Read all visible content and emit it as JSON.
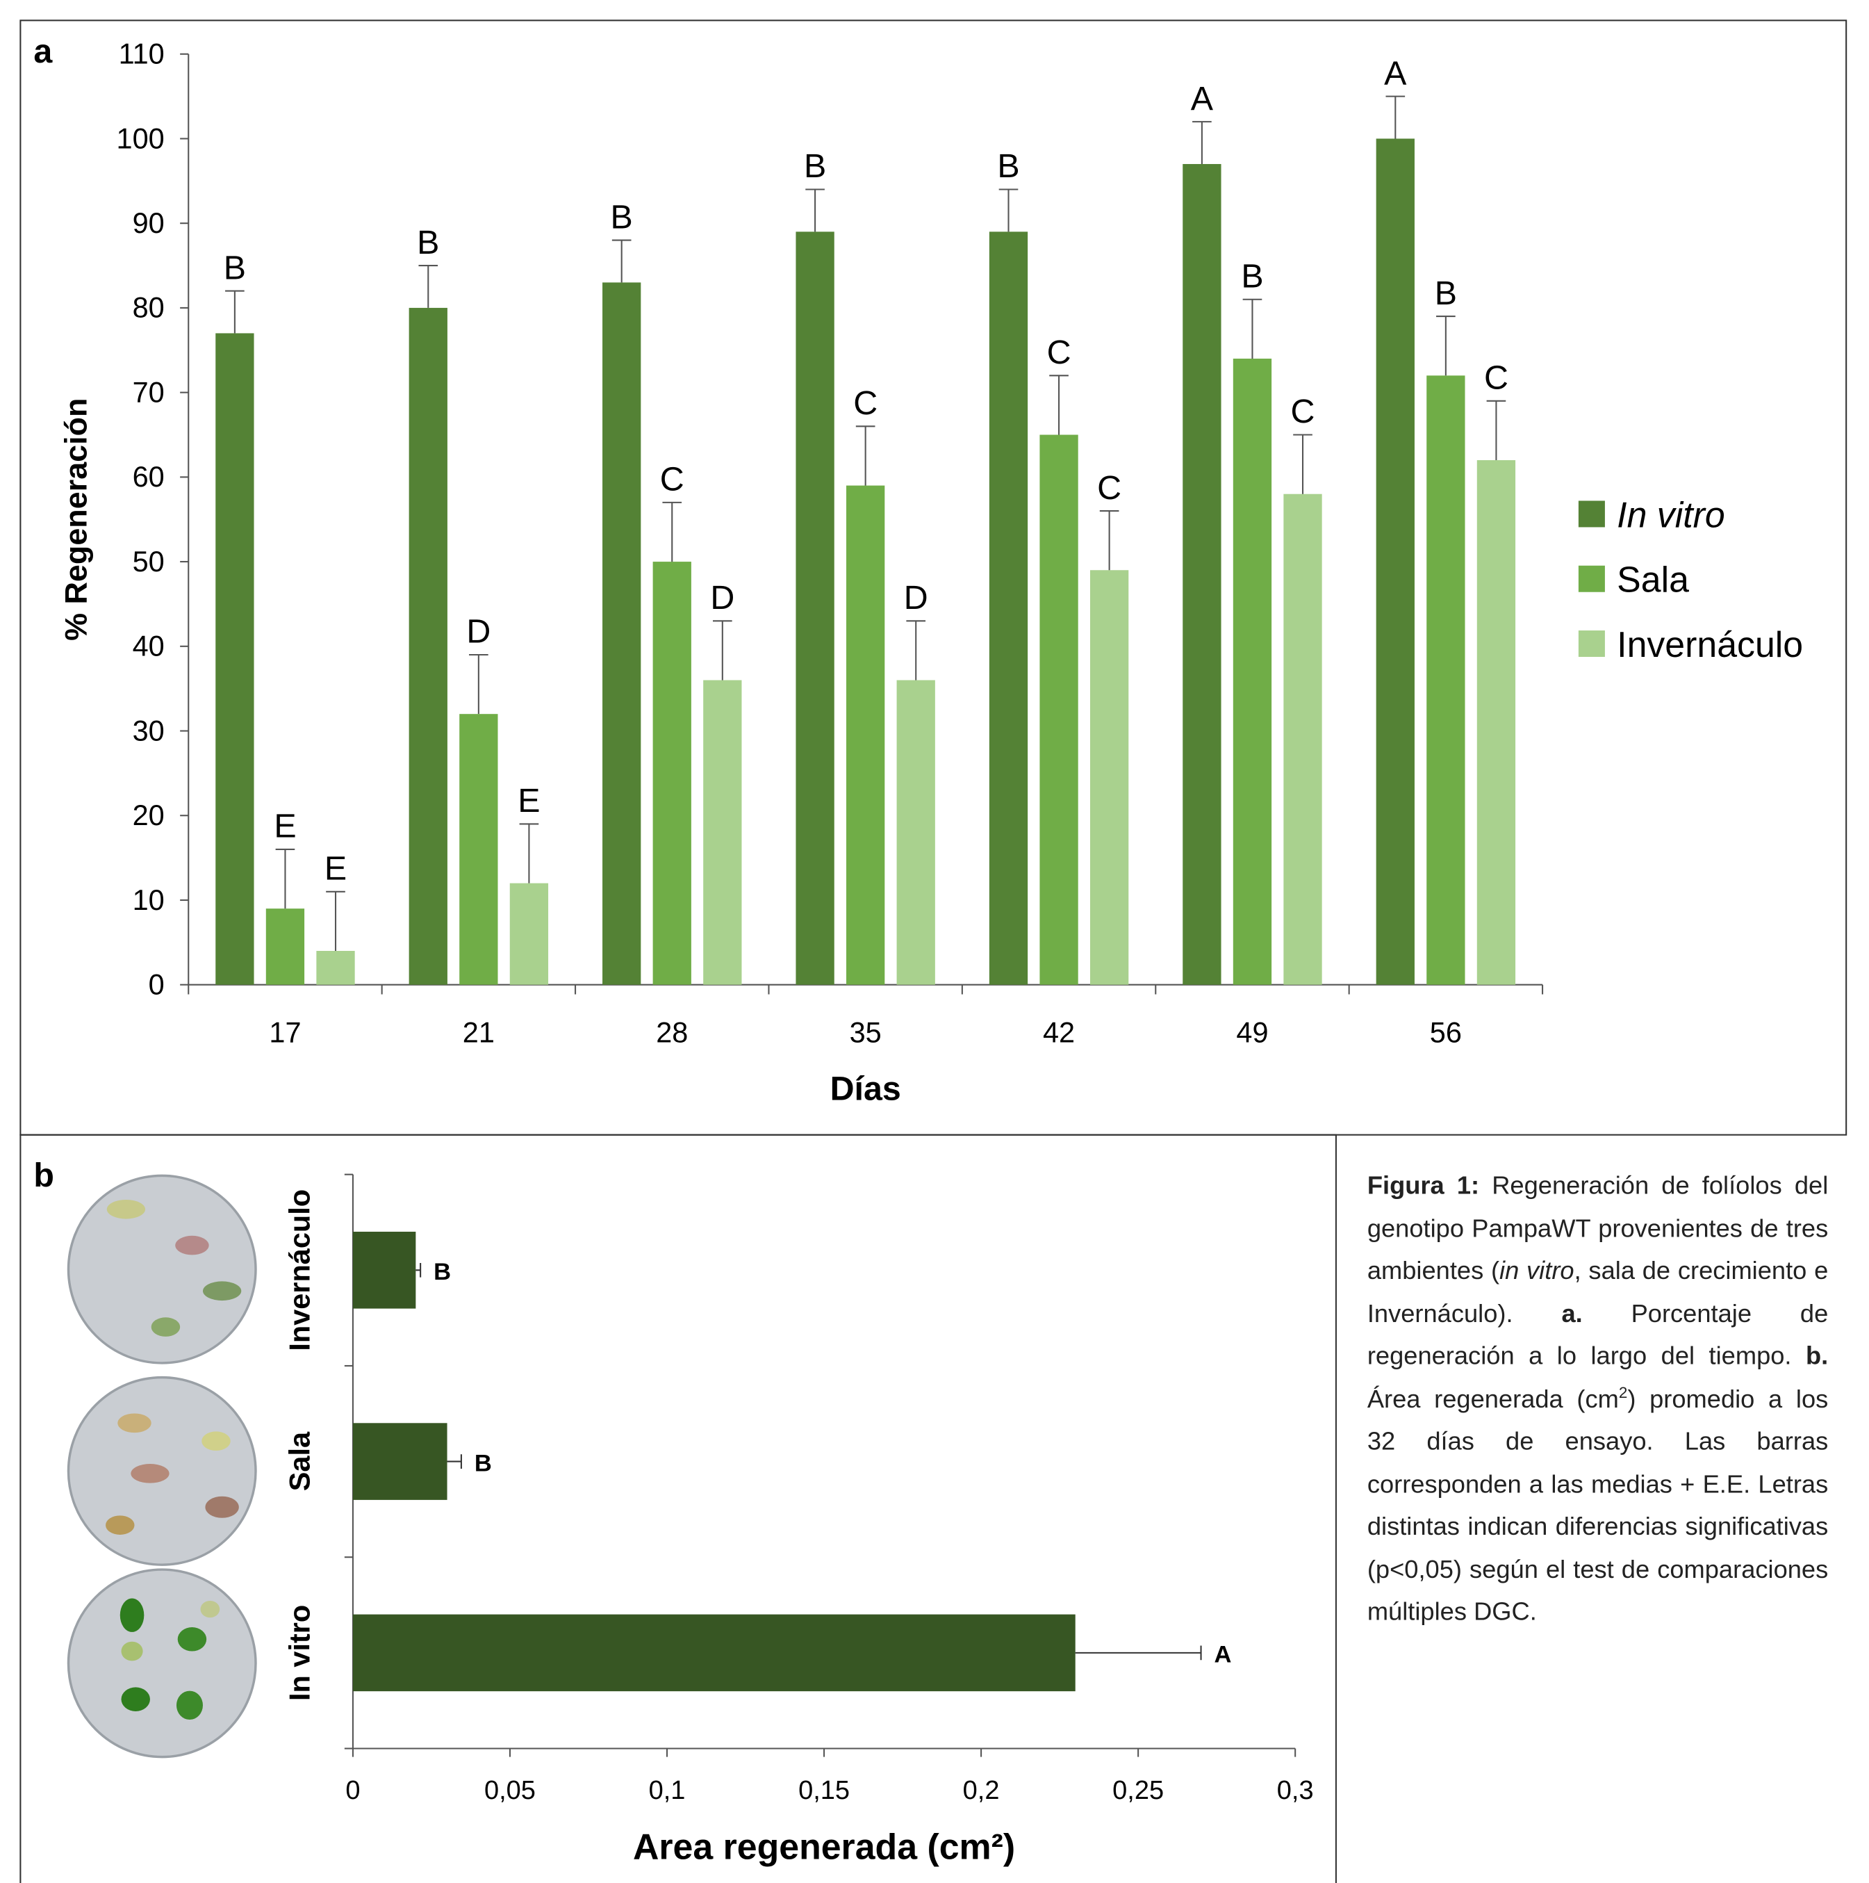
{
  "panel_labels": [
    "a",
    "b"
  ],
  "chart_data": [
    {
      "type": "bar",
      "ylabel": "% Regeneración",
      "xlabel": "Días",
      "categories": [
        "17",
        "21",
        "28",
        "35",
        "42",
        "49",
        "56"
      ],
      "series": [
        {
          "name": "In vitro",
          "color": "#548235",
          "values": [
            77,
            80,
            83,
            89,
            89,
            97,
            100
          ],
          "errors": [
            5,
            5,
            5,
            5,
            5,
            5,
            5
          ],
          "letters": [
            "B",
            "B",
            "B",
            "B",
            "B",
            "A",
            "A"
          ]
        },
        {
          "name": "Sala",
          "color": "#70ad47",
          "values": [
            9,
            32,
            50,
            59,
            65,
            74,
            72
          ],
          "errors": [
            7,
            7,
            7,
            7,
            7,
            7,
            7
          ],
          "letters": [
            "E",
            "D",
            "C",
            "C",
            "C",
            "B",
            "B"
          ]
        },
        {
          "name": "Invernáculo",
          "color": "#a9d18e",
          "values": [
            4,
            12,
            36,
            36,
            49,
            58,
            62
          ],
          "errors": [
            7,
            7,
            7,
            7,
            7,
            7,
            7
          ],
          "letters": [
            "E",
            "E",
            "D",
            "D",
            "C",
            "C",
            "C"
          ]
        }
      ],
      "ylim": [
        0,
        110
      ],
      "yticks": [
        0,
        10,
        20,
        30,
        40,
        50,
        60,
        70,
        80,
        90,
        100,
        110
      ],
      "legend": "right"
    },
    {
      "type": "hbar",
      "xlabel": "Area regenerada (cm²)",
      "categories": [
        "Invernáculo",
        "Sala",
        "In vitro"
      ],
      "values": [
        0.02,
        0.03,
        0.23
      ],
      "errors": [
        0.0015,
        0.0045,
        0.04
      ],
      "letters": [
        "B",
        "B",
        "A"
      ],
      "color": "#375623",
      "xlim": [
        0,
        0.3
      ],
      "xticks": [
        0,
        {
          "value": 0.05,
          "label": "0,05"
        },
        {
          "value": 0.1,
          "label": "0,1"
        },
        {
          "value": 0.15,
          "label": "0,15"
        },
        {
          "value": 0.2,
          "label": "0,2"
        },
        {
          "value": 0.25,
          "label": "0,25"
        },
        {
          "value": 0.3,
          "label": "0,3"
        }
      ]
    }
  ],
  "caption": {
    "runs": [
      {
        "text": "Figura 1:",
        "style": "bold"
      },
      {
        "text": " Regeneración de folíolos del genotipo PampaWT provenientes de tres ambientes ("
      },
      {
        "text": "in vitro",
        "style": "italic"
      },
      {
        "text": ", sala de crecimiento e Invernáculo). "
      },
      {
        "text": "a.",
        "style": "bold"
      },
      {
        "text": " Porcentaje de regeneración a lo largo del tiempo. "
      },
      {
        "text": "b.",
        "style": "bold"
      },
      {
        "text": " Área regenerada (cm"
      },
      {
        "text": "2",
        "style": "sup"
      },
      {
        "text": ") promedio a los 32 días de ensayo. Las barras corresponden a las medias + E.E. Letras distintas indican diferencias significativas (p<0,05) según el test de comparaciones múltiples DGC."
      }
    ]
  }
}
